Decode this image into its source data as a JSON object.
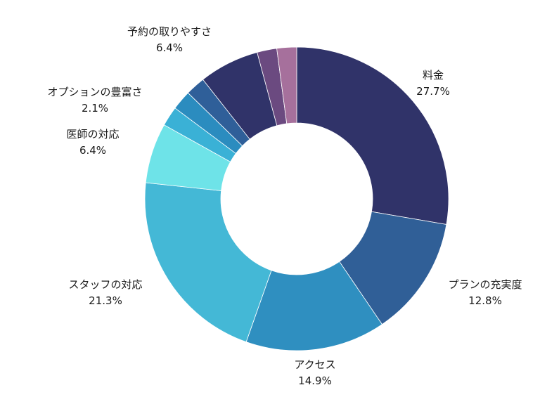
{
  "chart_data": {
    "type": "pie",
    "donut": true,
    "slices": [
      {
        "label": "料金",
        "value": 27.7,
        "value_text": "27.7%",
        "color": "#303369"
      },
      {
        "label": "プランの充実度",
        "value": 12.8,
        "value_text": "12.8%",
        "color": "#305f97"
      },
      {
        "label": "アクセス",
        "value": 14.9,
        "value_text": "14.9%",
        "color": "#2f8fc0"
      },
      {
        "label": "スタッフの対応",
        "value": 21.3,
        "value_text": "21.3%",
        "color": "#44b8d6"
      },
      {
        "label": "医師の対応",
        "value": 6.4,
        "value_text": "6.4%",
        "color": "#6ee3e8"
      },
      {
        "label": "",
        "value": 2.1,
        "value_text": "",
        "color": "#3ab1d6"
      },
      {
        "label": "オプションの豊富さ",
        "value": 2.1,
        "value_text": "2.1%",
        "color": "#2b8cbf"
      },
      {
        "label": "",
        "value": 2.1,
        "value_text": "",
        "color": "#2f5f99"
      },
      {
        "label": "予約の取りやすさ",
        "value": 6.4,
        "value_text": "6.4%",
        "color": "#303369"
      },
      {
        "label": "",
        "value": 2.1,
        "value_text": "",
        "color": "#6b4a80"
      },
      {
        "label": "",
        "value": 2.1,
        "value_text": "",
        "color": "#a6709c"
      }
    ]
  }
}
